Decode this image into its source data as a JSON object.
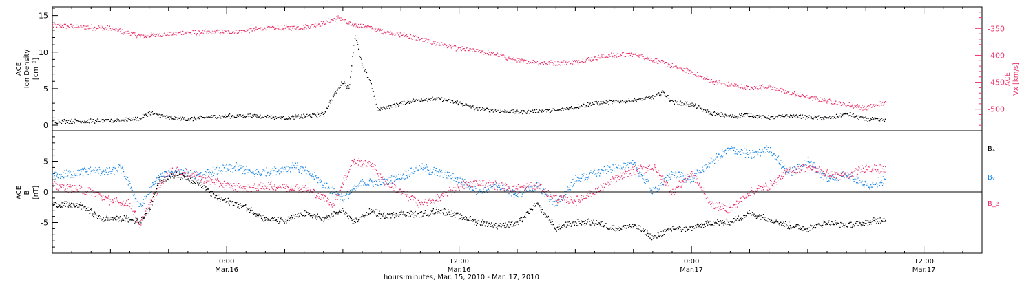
{
  "colors": {
    "black": "#000000",
    "pink": "#e8336b",
    "blue": "#1e88e5",
    "axis": "#000000"
  },
  "chart_data": [
    {
      "type": "scatter",
      "panel": "top",
      "left_axis_label": [
        "ACE",
        "Ion Density",
        "[cm⁻³]"
      ],
      "right_axis_label": [
        "ACE",
        "Vx [km/s]"
      ],
      "left_ylim": [
        0,
        16
      ],
      "left_ticks": [
        0,
        5,
        10,
        15
      ],
      "right_ylim": [
        -540,
        -310
      ],
      "right_ticks": [
        -350,
        -400,
        -450,
        -500
      ],
      "x_range_hours": [
        0,
        48
      ],
      "series": [
        {
          "name": "Ion Density",
          "color": "black",
          "axis": "left",
          "knots": [
            [
              0,
              0.5
            ],
            [
              3,
              0.6
            ],
            [
              4.5,
              0.9
            ],
            [
              5,
              1.7
            ],
            [
              6,
              1.0
            ],
            [
              7,
              0.8
            ],
            [
              8,
              1.1
            ],
            [
              9,
              1.2
            ],
            [
              10,
              1.3
            ],
            [
              12,
              1.0
            ],
            [
              13,
              1.2
            ],
            [
              14,
              1.5
            ],
            [
              14.5,
              4.0
            ],
            [
              15,
              6.0
            ],
            [
              15.3,
              5.0
            ],
            [
              15.6,
              12.5
            ],
            [
              16,
              8.0
            ],
            [
              16.4,
              6.0
            ],
            [
              16.8,
              2.0
            ],
            [
              17,
              2.3
            ],
            [
              18,
              3.0
            ],
            [
              19,
              3.5
            ],
            [
              20,
              3.6
            ],
            [
              21,
              3.0
            ],
            [
              22,
              2.2
            ],
            [
              23,
              2.0
            ],
            [
              24,
              1.8
            ],
            [
              26,
              2.0
            ],
            [
              27,
              2.5
            ],
            [
              28,
              3.0
            ],
            [
              30,
              3.4
            ],
            [
              31,
              3.8
            ],
            [
              31.5,
              4.5
            ],
            [
              32,
              3.2
            ],
            [
              33,
              2.8
            ],
            [
              34,
              1.6
            ],
            [
              35,
              1.2
            ],
            [
              36,
              1.4
            ],
            [
              37,
              1.0
            ],
            [
              38,
              1.3
            ],
            [
              39,
              1.1
            ],
            [
              40,
              0.9
            ],
            [
              41,
              1.5
            ],
            [
              42,
              0.8
            ],
            [
              43,
              0.7
            ]
          ]
        },
        {
          "name": "Vx",
          "color": "pink",
          "axis": "right",
          "knots": [
            [
              0,
              -345
            ],
            [
              3,
              -350
            ],
            [
              4.5,
              -365
            ],
            [
              5.5,
              -362
            ],
            [
              7,
              -358
            ],
            [
              9,
              -357
            ],
            [
              10,
              -354
            ],
            [
              11,
              -350
            ],
            [
              13,
              -348
            ],
            [
              14,
              -340
            ],
            [
              14.8,
              -330
            ],
            [
              15.3,
              -342
            ],
            [
              16,
              -345
            ],
            [
              17,
              -355
            ],
            [
              18,
              -362
            ],
            [
              19,
              -370
            ],
            [
              20,
              -380
            ],
            [
              21,
              -388
            ],
            [
              22,
              -392
            ],
            [
              23,
              -400
            ],
            [
              24,
              -410
            ],
            [
              25,
              -413
            ],
            [
              26,
              -415
            ],
            [
              27,
              -412
            ],
            [
              28,
              -405
            ],
            [
              29,
              -400
            ],
            [
              30,
              -398
            ],
            [
              31,
              -408
            ],
            [
              32,
              -420
            ],
            [
              33,
              -432
            ],
            [
              34,
              -448
            ],
            [
              35,
              -455
            ],
            [
              36,
              -462
            ],
            [
              37,
              -458
            ],
            [
              38,
              -470
            ],
            [
              39,
              -478
            ],
            [
              40,
              -485
            ],
            [
              41,
              -492
            ],
            [
              42,
              -498
            ],
            [
              43,
              -488
            ]
          ]
        }
      ]
    },
    {
      "type": "scatter",
      "panel": "bottom",
      "left_axis_label": [
        "ACE",
        "B",
        "[nT]"
      ],
      "ylim": [
        -10,
        10
      ],
      "ticks": [
        -5,
        0,
        5
      ],
      "x_range_hours": [
        0,
        48
      ],
      "zero_line": true,
      "series": [
        {
          "name": "Bx",
          "color": "black",
          "legend": "Bₓ",
          "knots": [
            [
              0,
              -2.0
            ],
            [
              1.5,
              -2.3
            ],
            [
              2.5,
              -4.5
            ],
            [
              3.5,
              -4.3
            ],
            [
              4.5,
              -4.8
            ],
            [
              5,
              -3.0
            ],
            [
              5.5,
              2.0
            ],
            [
              6.5,
              2.8
            ],
            [
              7.5,
              1.5
            ],
            [
              8.5,
              -1.0
            ],
            [
              9,
              -1.5
            ],
            [
              10,
              -2.5
            ],
            [
              11,
              -4.5
            ],
            [
              12,
              -4.8
            ],
            [
              13,
              -3.5
            ],
            [
              14,
              -4.5
            ],
            [
              15,
              -3.0
            ],
            [
              15.5,
              -5.0
            ],
            [
              16.5,
              -3.0
            ],
            [
              17,
              -4.0
            ],
            [
              18,
              -3.5
            ],
            [
              19,
              -3.8
            ],
            [
              20,
              -3.0
            ],
            [
              21,
              -4.0
            ],
            [
              22,
              -5.0
            ],
            [
              23,
              -5.5
            ],
            [
              24,
              -5.2
            ],
            [
              25,
              -2.0
            ],
            [
              26,
              -6.0
            ],
            [
              27,
              -5.0
            ],
            [
              28,
              -5.0
            ],
            [
              29,
              -6.0
            ],
            [
              30,
              -5.5
            ],
            [
              31,
              -7.5
            ],
            [
              32,
              -6.0
            ],
            [
              33,
              -6.0
            ],
            [
              34,
              -5.0
            ],
            [
              35,
              -5.0
            ],
            [
              36,
              -3.5
            ],
            [
              37,
              -4.5
            ],
            [
              38,
              -5.5
            ],
            [
              39,
              -6.0
            ],
            [
              40,
              -5.0
            ],
            [
              41,
              -5.5
            ],
            [
              42,
              -5.0
            ],
            [
              43,
              -4.5
            ]
          ]
        },
        {
          "name": "By",
          "color": "blue",
          "legend": "Bᵧ",
          "knots": [
            [
              0,
              2.5
            ],
            [
              1,
              3.0
            ],
            [
              2,
              3.5
            ],
            [
              3,
              3.2
            ],
            [
              3.5,
              4.0
            ],
            [
              4,
              1.0
            ],
            [
              4.5,
              -2.5
            ],
            [
              5.5,
              2.5
            ],
            [
              6.5,
              3.5
            ],
            [
              7.5,
              2.5
            ],
            [
              8.5,
              3.5
            ],
            [
              9.5,
              4.0
            ],
            [
              10.5,
              3.0
            ],
            [
              11.5,
              3.5
            ],
            [
              12.5,
              4.2
            ],
            [
              13.5,
              2.5
            ],
            [
              14.5,
              0.0
            ],
            [
              15,
              -1.0
            ],
            [
              16,
              1.5
            ],
            [
              17,
              1.5
            ],
            [
              18,
              2.5
            ],
            [
              19,
              4.0
            ],
            [
              20,
              3.0
            ],
            [
              21,
              2.0
            ],
            [
              22,
              0.0
            ],
            [
              23,
              1.0
            ],
            [
              24,
              -0.5
            ],
            [
              25,
              1.0
            ],
            [
              26,
              -2.0
            ],
            [
              27,
              2.0
            ],
            [
              28,
              3.0
            ],
            [
              29,
              4.0
            ],
            [
              30,
              4.5
            ],
            [
              31,
              0.0
            ],
            [
              32,
              3.0
            ],
            [
              33,
              2.0
            ],
            [
              34,
              5.0
            ],
            [
              35,
              7.0
            ],
            [
              36,
              6.0
            ],
            [
              37,
              7.0
            ],
            [
              38,
              3.0
            ],
            [
              39,
              5.0
            ],
            [
              40,
              2.0
            ],
            [
              41,
              3.0
            ],
            [
              42,
              1.0
            ],
            [
              43,
              2.0
            ]
          ]
        },
        {
          "name": "Bz",
          "color": "pink",
          "legend": "B_z",
          "knots": [
            [
              0,
              1.0
            ],
            [
              1,
              0.5
            ],
            [
              2,
              0.0
            ],
            [
              3,
              -1.5
            ],
            [
              4,
              -2.0
            ],
            [
              4.5,
              -5.5
            ],
            [
              5,
              -2.0
            ],
            [
              6,
              3.5
            ],
            [
              7,
              3.0
            ],
            [
              8,
              2.0
            ],
            [
              9,
              1.0
            ],
            [
              10,
              0.5
            ],
            [
              11,
              1.0
            ],
            [
              12,
              0.8
            ],
            [
              13,
              0.5
            ],
            [
              14,
              -1.0
            ],
            [
              14.5,
              -2.0
            ],
            [
              15.5,
              5.0
            ],
            [
              16.5,
              4.5
            ],
            [
              17,
              2.0
            ],
            [
              18,
              0.0
            ],
            [
              19,
              -2.0
            ],
            [
              20,
              -1.0
            ],
            [
              21,
              1.0
            ],
            [
              22,
              1.5
            ],
            [
              23,
              1.0
            ],
            [
              24,
              0.5
            ],
            [
              25,
              1.0
            ],
            [
              26,
              -1.0
            ],
            [
              27,
              -1.5
            ],
            [
              28,
              0.0
            ],
            [
              29,
              2.0
            ],
            [
              30,
              3.5
            ],
            [
              31,
              4.0
            ],
            [
              32,
              0.0
            ],
            [
              33,
              3.0
            ],
            [
              34,
              -2.0
            ],
            [
              35,
              -3.0
            ],
            [
              36,
              0.0
            ],
            [
              37,
              1.0
            ],
            [
              38,
              3.5
            ],
            [
              39,
              4.0
            ],
            [
              40,
              3.0
            ],
            [
              41,
              2.5
            ],
            [
              42,
              4.0
            ],
            [
              43,
              3.5
            ]
          ]
        }
      ]
    }
  ],
  "x_axis": {
    "tick_labels": [
      {
        "hours": 9,
        "time": "0:00",
        "date": "Mar.16"
      },
      {
        "hours": 21,
        "time": "12:00",
        "date": "Mar.16"
      },
      {
        "hours": 33,
        "time": "0:00",
        "date": "Mar.17"
      },
      {
        "hours": 45,
        "time": "12:00",
        "date": "Mar.17"
      }
    ],
    "title": "hours:minutes, Mar. 15, 2010 - Mar. 17, 2010"
  }
}
